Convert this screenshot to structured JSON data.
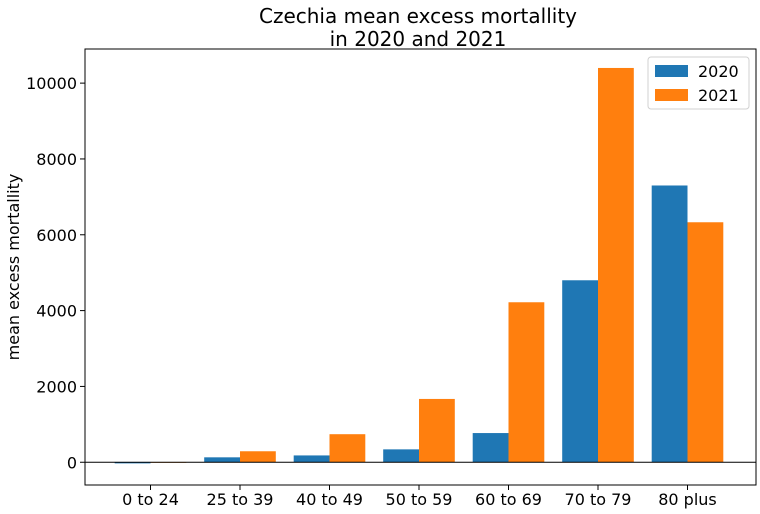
{
  "chart_data": {
    "type": "bar",
    "title_lines": [
      "Czechia mean excess mortallity",
      "in 2020 and 2021"
    ],
    "xlabel": "",
    "ylabel": "mean excess mortallity",
    "categories": [
      "0 to 24",
      "25 to 39",
      "40 to 49",
      "50 to 59",
      "60 to 69",
      "70 to 79",
      "80 plus"
    ],
    "series": [
      {
        "name": "2020",
        "color": "#1f77b4",
        "values": [
          -30,
          130,
          180,
          340,
          770,
          4800,
          7300
        ]
      },
      {
        "name": "2021",
        "color": "#ff7f0e",
        "values": [
          -10,
          290,
          740,
          1670,
          4220,
          10400,
          6330
        ]
      }
    ],
    "ylim": [
      -600,
      10900
    ],
    "yticks": [
      0,
      2000,
      4000,
      6000,
      8000,
      10000
    ],
    "zero_line": true,
    "grid": false,
    "legend_position": "top-right"
  }
}
